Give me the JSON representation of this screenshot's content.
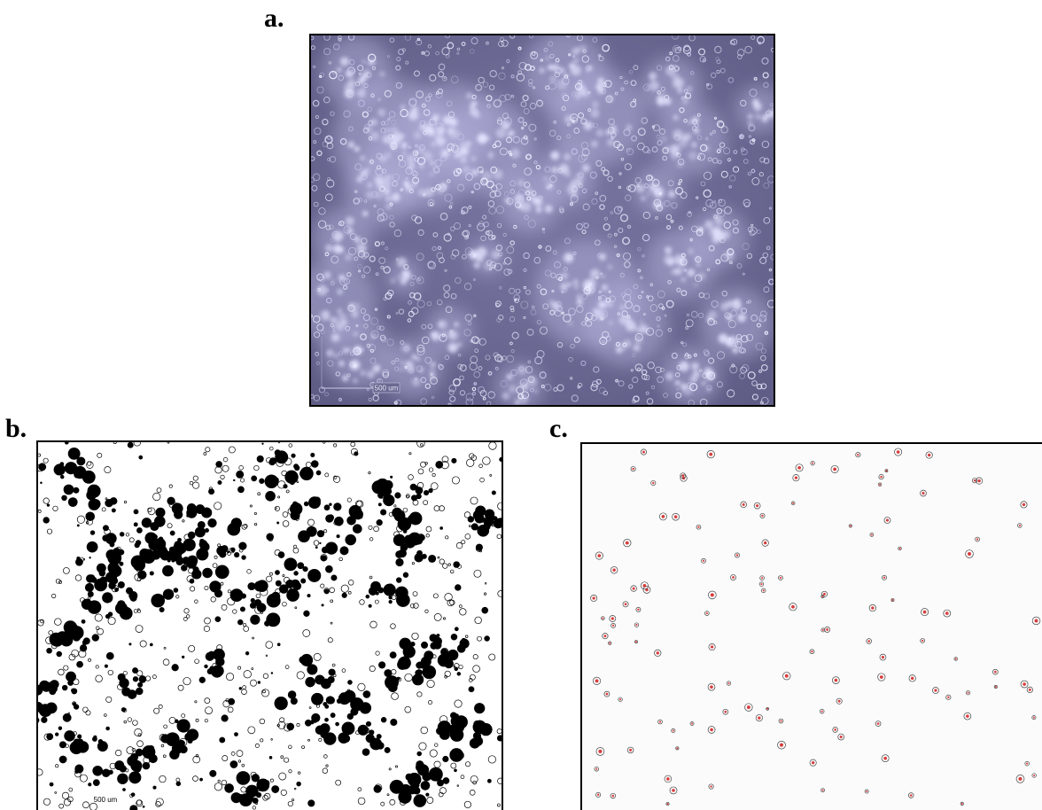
{
  "figure": {
    "panels": [
      {
        "id": "a",
        "label": "a.",
        "kind": "micrograph",
        "scale_bar_text": "500 um"
      },
      {
        "id": "b",
        "label": "b.",
        "kind": "binarized",
        "scale_bar_text": "500 um"
      },
      {
        "id": "c",
        "label": "c.",
        "kind": "detected-bubbles"
      }
    ]
  },
  "colors": {
    "micrograph_background": "#6f6d96",
    "micrograph_bright": "#e4e4ff",
    "binary_foreground": "#000000",
    "binary_background": "#ffffff",
    "detection_marker": "#d11a1a",
    "detection_outline": "#444444"
  }
}
